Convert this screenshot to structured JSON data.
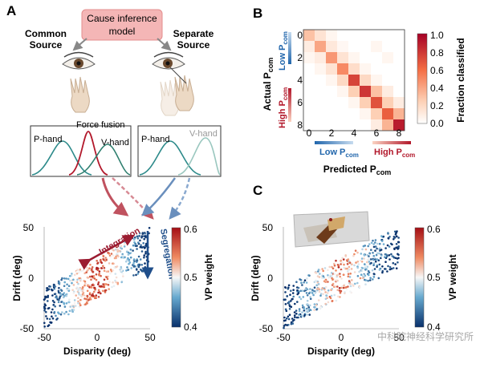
{
  "figure": {
    "panels": {
      "A": {
        "letter": "A",
        "model_box": "Cause inference model",
        "common_source": [
          "Common",
          "Source"
        ],
        "separate_source": [
          "Separate",
          "Source"
        ],
        "labels": {
          "p_hand_left": "P-hand",
          "force_fusion": "Force fusion",
          "v_hand_left": "V-hand",
          "p_hand_right": "P-hand",
          "v_hand_right": "V-hand"
        },
        "arrows": {
          "integration": "Integration",
          "segregation": "Segregation"
        },
        "colorbar": {
          "label": "VP weight",
          "ticks": [
            "0.6",
            "0.5",
            "0.4"
          ]
        }
      },
      "B": {
        "letter": "B",
        "ylabel_actual": "Actual P",
        "ylabel_sub": "com",
        "xlabel_predicted": "Predicted P",
        "xlabel_sub": "com",
        "low_left": "Low P",
        "high_left": "High P",
        "low_bottom": "Low P",
        "high_bottom": "High P",
        "sub": "com",
        "colorbar": {
          "label": "Fraction classified",
          "ticks": [
            "1.0",
            "0.8",
            "0.6",
            "0.4",
            "0.2",
            "0.0"
          ]
        }
      },
      "C": {
        "letter": "C",
        "colorbar": {
          "label": "VP weight",
          "ticks": [
            "0.6",
            "0.5",
            "0.4"
          ]
        }
      }
    },
    "watermark": "中科院神经科学研究所"
  },
  "chart_data": [
    {
      "type": "heatmap",
      "panel": "B",
      "xlabel": "Predicted Pcom",
      "ylabel": "Actual Pcom",
      "x_ticks": [
        "0",
        "2",
        "4",
        "6",
        "8"
      ],
      "y_ticks": [
        "0",
        "2",
        "4",
        "6",
        "8"
      ],
      "colorbar_label": "Fraction classified",
      "colorbar_range": [
        0,
        1
      ],
      "matrix": [
        [
          0.3,
          0.15,
          0.05,
          0.0,
          0.0,
          0.0,
          0.0,
          0.0,
          0.0
        ],
        [
          0.1,
          0.4,
          0.12,
          0.04,
          0.0,
          0.0,
          0.05,
          0.0,
          0.0
        ],
        [
          0.05,
          0.1,
          0.45,
          0.15,
          0.05,
          0.0,
          0.0,
          0.05,
          0.0
        ],
        [
          0.0,
          0.05,
          0.15,
          0.5,
          0.18,
          0.05,
          0.0,
          0.0,
          0.0
        ],
        [
          0.0,
          0.0,
          0.05,
          0.2,
          0.75,
          0.2,
          0.05,
          0.0,
          0.0
        ],
        [
          0.0,
          0.0,
          0.0,
          0.05,
          0.25,
          0.8,
          0.3,
          0.1,
          0.0
        ],
        [
          0.0,
          0.0,
          0.0,
          0.0,
          0.05,
          0.25,
          0.7,
          0.25,
          0.1
        ],
        [
          0.0,
          0.0,
          0.0,
          0.0,
          0.0,
          0.05,
          0.25,
          0.65,
          0.35
        ],
        [
          0.0,
          0.0,
          0.0,
          0.0,
          0.0,
          0.0,
          0.1,
          0.35,
          0.9
        ]
      ]
    },
    {
      "type": "scatter",
      "panel": "A",
      "xlabel": "Disparity (deg)",
      "ylabel": "Drift (deg)",
      "xlim": [
        -50,
        50
      ],
      "ylim": [
        -50,
        50
      ],
      "x_ticks": [
        "-50",
        "0",
        "50"
      ],
      "y_ticks": [
        "50",
        "0",
        "-50"
      ],
      "colorbar_label": "VP weight",
      "colorbar_range": [
        0.4,
        0.6
      ]
    },
    {
      "type": "scatter",
      "panel": "C",
      "xlabel": "Disparity (deg)",
      "ylabel": "Drift (deg)",
      "xlim": [
        -50,
        50
      ],
      "ylim": [
        -50,
        50
      ],
      "x_ticks": [
        "-50",
        "0",
        "50"
      ],
      "y_ticks": [
        "50",
        "0",
        "-50"
      ],
      "colorbar_label": "VP weight",
      "colorbar_range": [
        0.4,
        0.6
      ]
    }
  ]
}
